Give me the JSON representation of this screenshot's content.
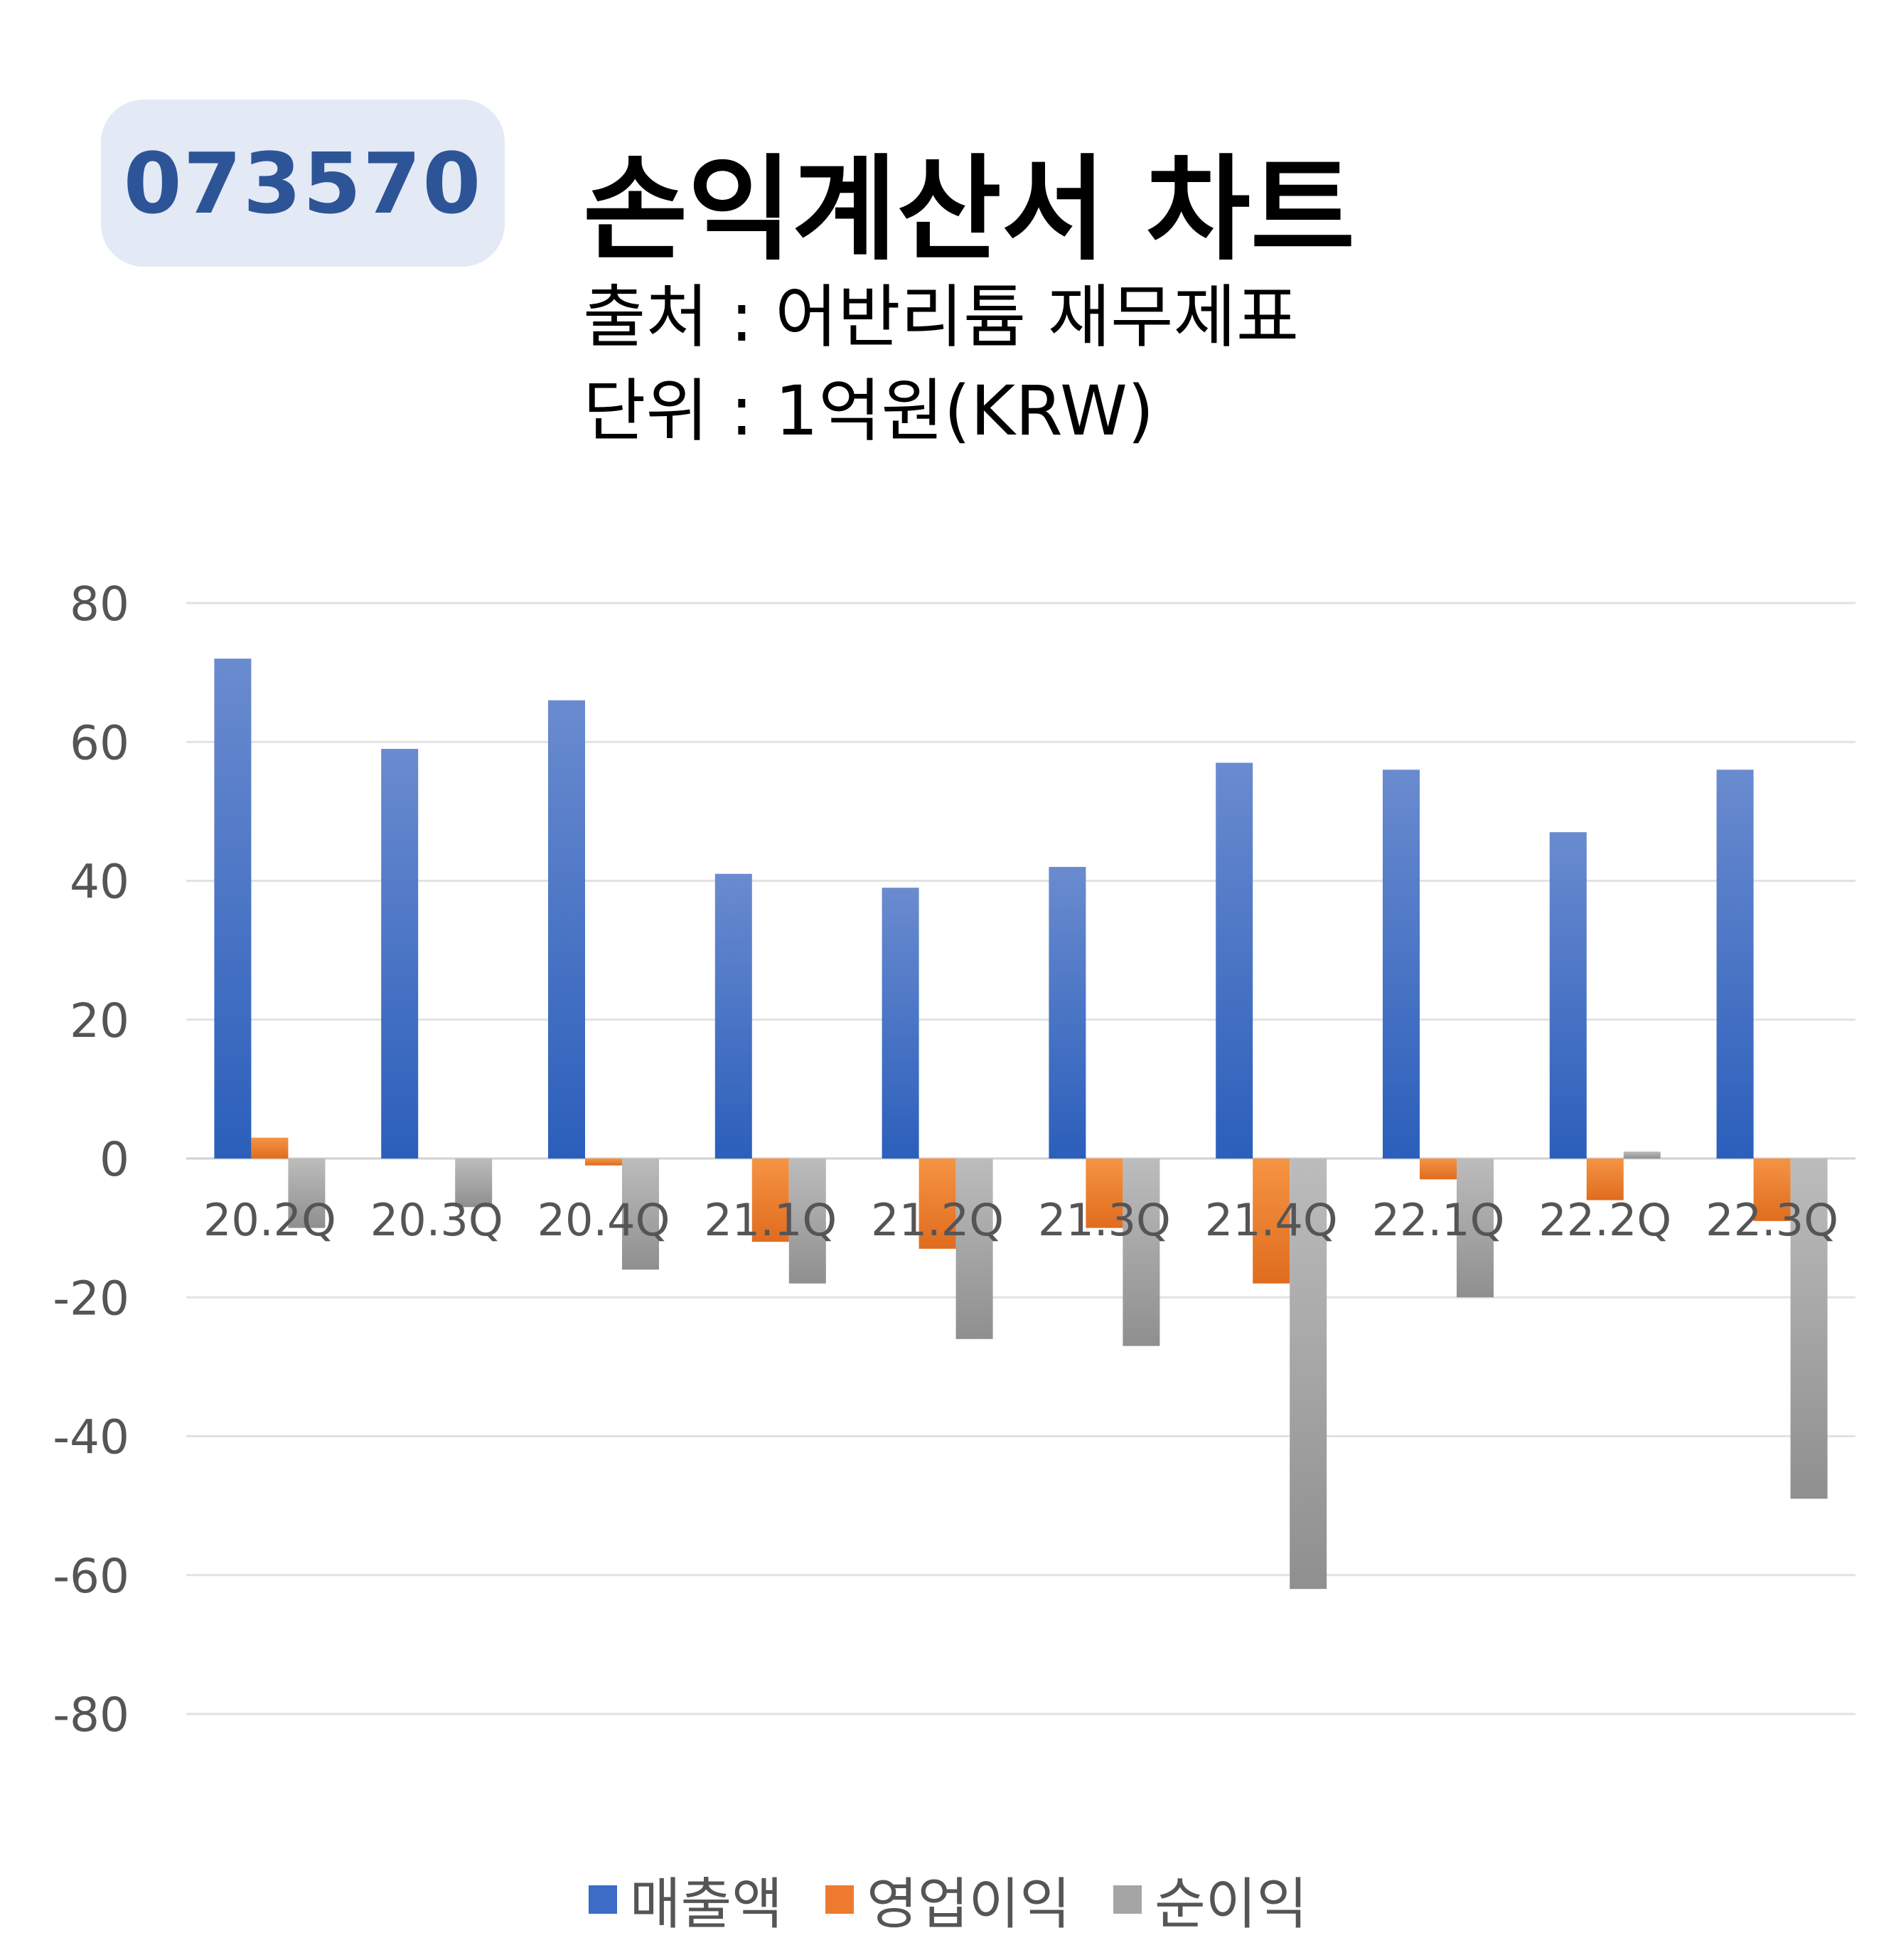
{
  "header": {
    "code": "073570",
    "title": "손익계산서 차트",
    "source": "출처 : 어반리튬 재무제표",
    "unit": "단위 : 1억원(KRW)"
  },
  "chart_data": {
    "type": "bar",
    "categories": [
      "20.2Q",
      "20.3Q",
      "20.4Q",
      "21.1Q",
      "21.2Q",
      "21.3Q",
      "21.4Q",
      "22.1Q",
      "22.2Q",
      "22.3Q"
    ],
    "series": [
      {
        "name": "매출액",
        "color": "#3b6cc6",
        "values": [
          72,
          59,
          66,
          41,
          39,
          42,
          57,
          56,
          47,
          56
        ]
      },
      {
        "name": "영업이익",
        "color": "#ed7a2e",
        "values": [
          3,
          0,
          -1,
          -12,
          -13,
          -10,
          -18,
          -3,
          -6,
          -9
        ]
      },
      {
        "name": "순이익",
        "color": "#a5a5a5",
        "values": [
          -10,
          -7,
          -16,
          -18,
          -26,
          -27,
          -62,
          -20,
          1,
          -49
        ]
      }
    ],
    "yticks": [
      80,
      60,
      40,
      20,
      0,
      -20,
      -40,
      -60,
      -80
    ],
    "ylim": [
      -80,
      80
    ],
    "grid": true,
    "legend": "bottom"
  }
}
